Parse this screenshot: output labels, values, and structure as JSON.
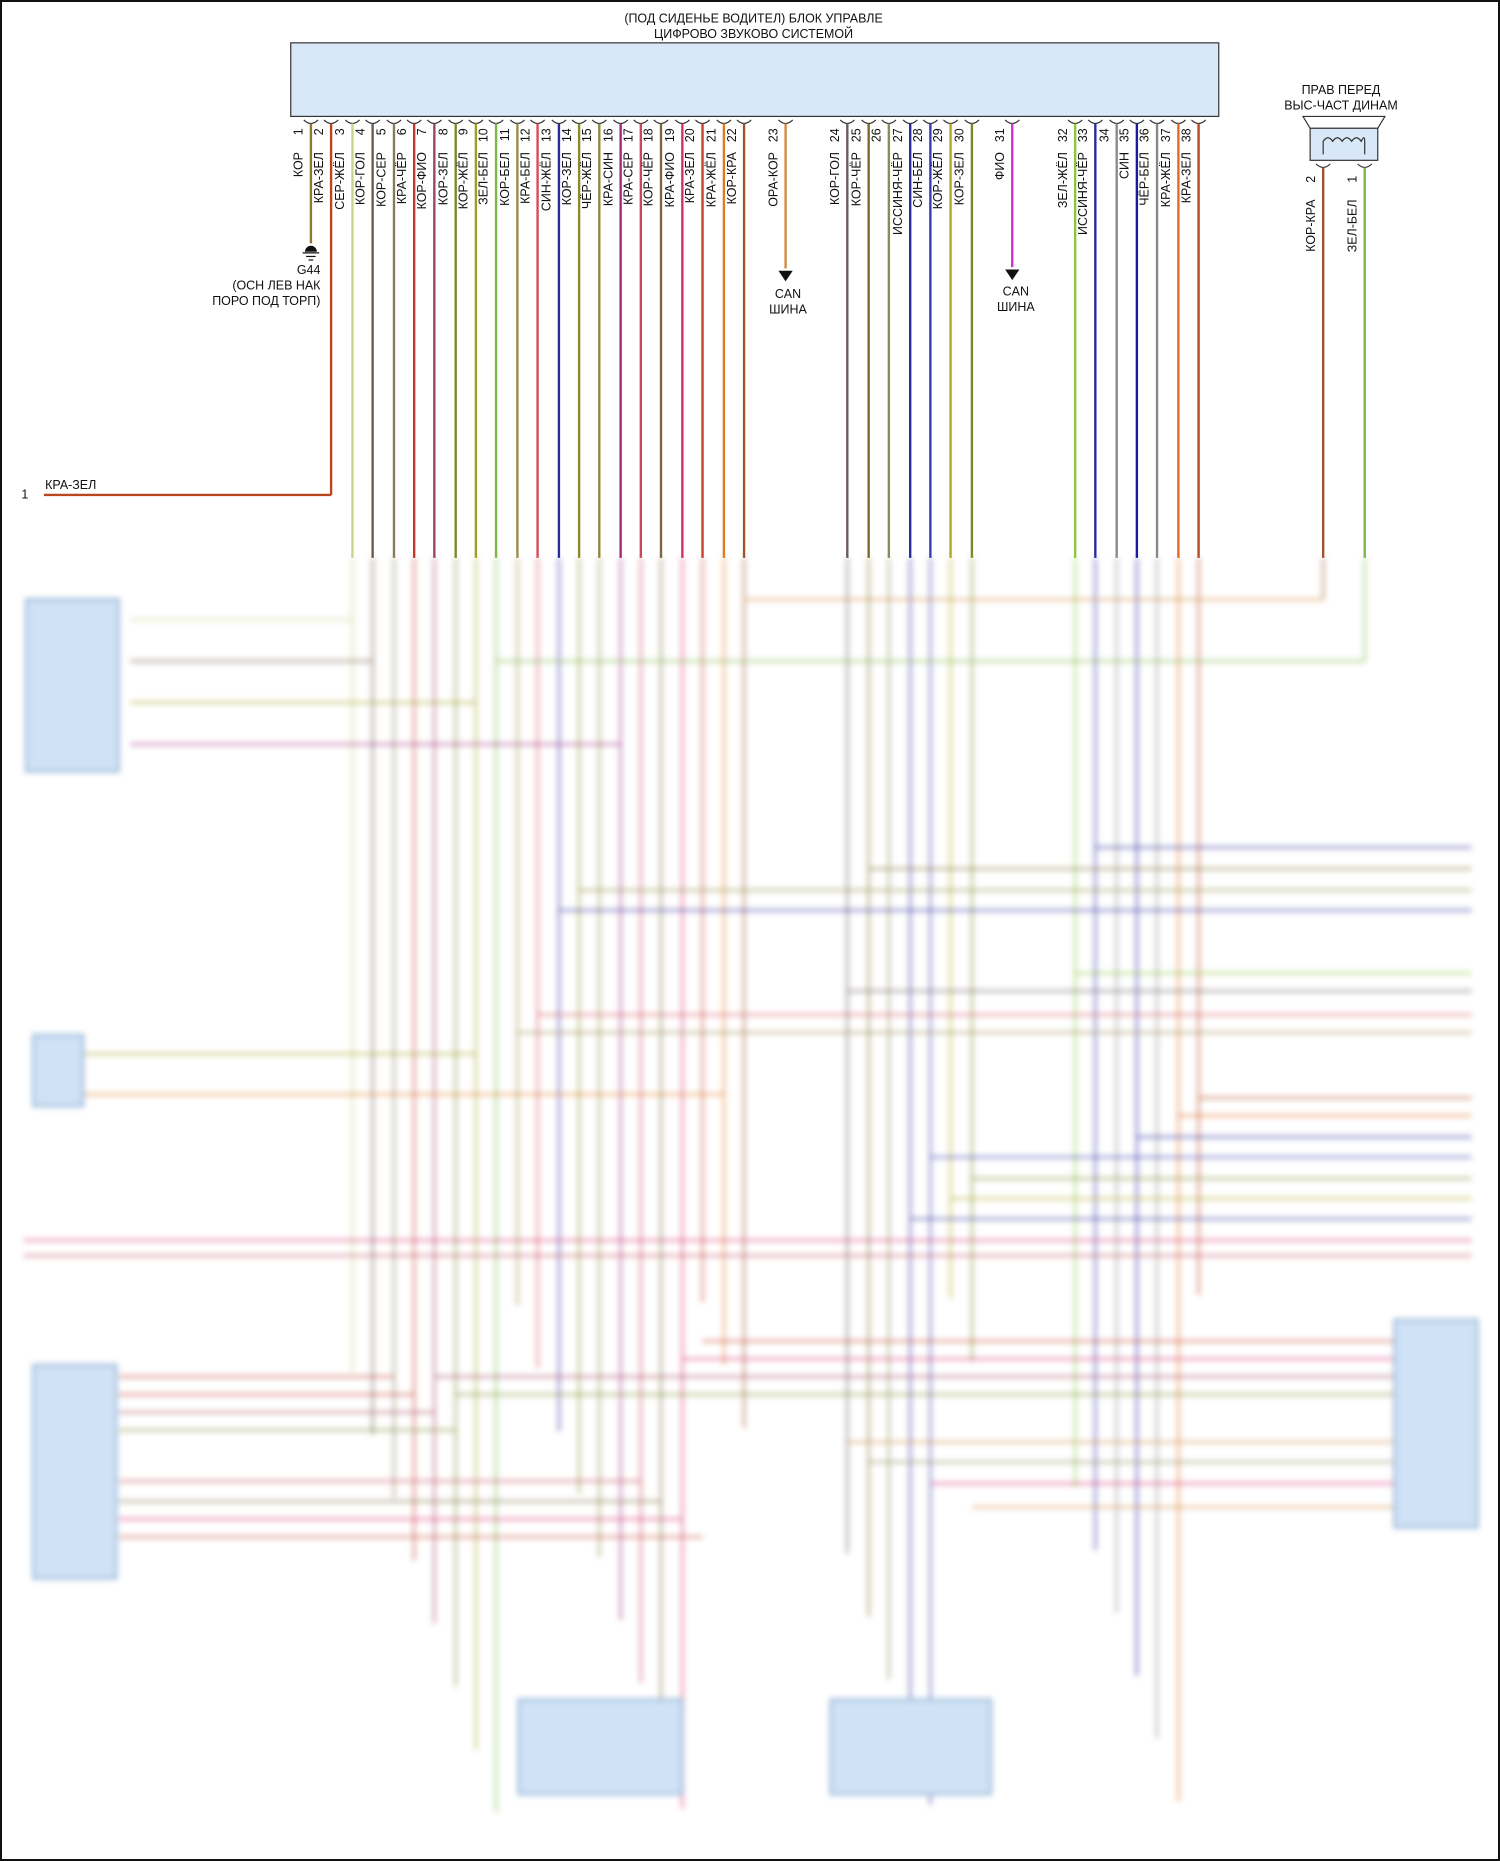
{
  "module": {
    "title_line1": "(ПОД СИДЕНЬЕ ВОДИТЕЛ) БЛОК УПРАВЛЕ",
    "title_line2": "ЦИФРОВО ЗВУКОВО СИСТЕМОЙ",
    "fill": "#d8e8f8",
    "pins": [
      {
        "num": "1",
        "label": "КОР",
        "color": "#8a7a2a"
      },
      {
        "num": "2",
        "label": "КРА-ЗЕЛ",
        "color": "#b8461e"
      },
      {
        "num": "3",
        "label": "СЕР-ЖЁЛ",
        "color": "#c8d48a"
      },
      {
        "num": "4",
        "label": "КОР-ГОЛ",
        "color": "#6e5a4a"
      },
      {
        "num": "5",
        "label": "КОР-СЕР",
        "color": "#8a7a5a"
      },
      {
        "num": "6",
        "label": "КРА-ЧЁР",
        "color": "#c0392b"
      },
      {
        "num": "7",
        "label": "КОР-ФИО",
        "color": "#a0445a"
      },
      {
        "num": "8",
        "label": "КОР-ЗЕЛ",
        "color": "#7a8a2a"
      },
      {
        "num": "9",
        "label": "КОР-ЖЁЛ",
        "color": "#a0a020"
      },
      {
        "num": "10",
        "label": "ЗЕЛ-БЕЛ",
        "color": "#7ab648"
      },
      {
        "num": "11",
        "label": "КОР-БЕЛ",
        "color": "#9a8a4a"
      },
      {
        "num": "12",
        "label": "КРА-БЕЛ",
        "color": "#d84a5a"
      },
      {
        "num": "13",
        "label": "СИН-ЖЁЛ",
        "color": "#2a2a9a"
      },
      {
        "num": "14",
        "label": "КОР-ЗЕЛ",
        "color": "#8a8a2a"
      },
      {
        "num": "15",
        "label": "ЧЁР-ЖЁЛ",
        "color": "#8a8a3a"
      },
      {
        "num": "16",
        "label": "КРА-СИН",
        "color": "#a02a7a"
      },
      {
        "num": "17",
        "label": "КРА-СЕР",
        "color": "#c8485a"
      },
      {
        "num": "18",
        "label": "КОР-ЧЁР",
        "color": "#7a6a3a"
      },
      {
        "num": "19",
        "label": "КРА-ФИО",
        "color": "#d82a6a"
      },
      {
        "num": "20",
        "label": "КРА-ЗЕЛ",
        "color": "#c8402a"
      },
      {
        "num": "21",
        "label": "КРА-ЖЁЛ",
        "color": "#e07a20"
      },
      {
        "num": "22",
        "label": "КОР-КРА",
        "color": "#a0522d"
      },
      {
        "num": "23",
        "label": "ОРА-КОР",
        "color": "#d08a3a"
      },
      {
        "num": "24",
        "label": "КОР-ГОЛ",
        "color": "#6a5a5a"
      },
      {
        "num": "25",
        "label": "КОР-ЧЁР",
        "color": "#7a6a2a"
      },
      {
        "num": "26",
        "label": "",
        "color": "#8a8a5a"
      },
      {
        "num": "27",
        "label": "ИССИНЯ-ЧЁР",
        "color": "#2a2a9a"
      },
      {
        "num": "28",
        "label": "СИН-БЕЛ",
        "color": "#3a3ab0"
      },
      {
        "num": "29",
        "label": "КОР-ЖЁЛ",
        "color": "#b0a820"
      },
      {
        "num": "30",
        "label": "КОР-ЗЕЛ",
        "color": "#7a8a2a"
      },
      {
        "num": "31",
        "label": "ФИО",
        "color": "#cc33cc"
      },
      {
        "num": "32",
        "label": "ЗЕЛ-ЖЁЛ",
        "color": "#8ac83a"
      },
      {
        "num": "33",
        "label": "ИССИНЯ-ЧЁР",
        "color": "#2a2aa0"
      },
      {
        "num": "34",
        "label": "",
        "color": "#8a8a8a"
      },
      {
        "num": "35",
        "label": "СИН",
        "color": "#1a1aa0"
      },
      {
        "num": "36",
        "label": "ЧЁР-БЕЛ",
        "color": "#888888"
      },
      {
        "num": "37",
        "label": "КРА-ЖЁЛ",
        "color": "#e06a20"
      },
      {
        "num": "38",
        "label": "КРА-ЗЕЛ",
        "color": "#b8461e"
      }
    ]
  },
  "ground": {
    "id": "G44",
    "line1": "(ОСН ЛЕВ НАК",
    "line2": "ПОРО ПОД ТОРП)"
  },
  "can_bus": [
    {
      "line1": "CAN",
      "line2": "ШИНА"
    },
    {
      "line1": "CAN",
      "line2": "ШИНА"
    }
  ],
  "left_connector": {
    "pin": "1",
    "label": "КРА-ЗЕЛ"
  },
  "speaker": {
    "title_line1": "ПРАВ ПЕРЕД",
    "title_line2": "ВЫС-ЧАСТ ДИНАМ",
    "pins": [
      {
        "num": "2",
        "label": "КОР-КРА",
        "color": "#a0522d"
      },
      {
        "num": "1",
        "label": "ЗЕЛ-БЕЛ",
        "color": "#7ab648"
      }
    ]
  }
}
